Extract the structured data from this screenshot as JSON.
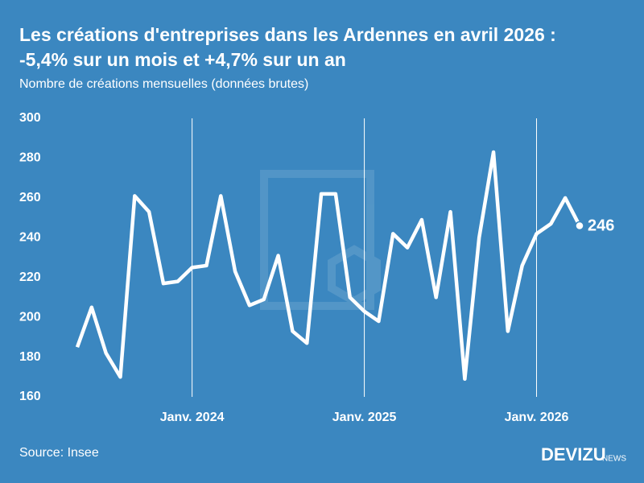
{
  "chart_data": {
    "type": "line",
    "title": "Les créations d'entreprises dans les Ardennes en avril 2026 :",
    "title_line2": "-5,4% sur un mois et +4,7% sur un an",
    "subtitle": "Nombre de créations mensuelles (données brutes)",
    "source": "Source: Insee",
    "brand": "DEVIZU",
    "brand_suffix": "NEWS",
    "categories": [
      null,
      null,
      null,
      null,
      null,
      null,
      null,
      null,
      "Janv. 2024",
      null,
      null,
      null,
      null,
      null,
      null,
      null,
      null,
      null,
      null,
      null,
      "Janv. 2025",
      null,
      null,
      null,
      null,
      null,
      null,
      null,
      null,
      null,
      null,
      null,
      "Janv. 2026",
      null,
      null,
      null
    ],
    "series": [
      {
        "name": "Créations",
        "color": "#ffffff",
        "values": [
          185,
          205,
          182,
          170,
          261,
          253,
          217,
          218,
          225,
          226,
          261,
          223,
          206,
          209,
          231,
          193,
          187,
          262,
          262,
          210,
          203,
          198,
          242,
          235,
          249,
          210,
          253,
          169,
          240,
          283,
          193,
          226,
          242,
          247,
          260,
          246
        ]
      }
    ],
    "ylim": [
      160,
      300
    ],
    "yticks": [
      160,
      180,
      200,
      220,
      240,
      260,
      280,
      300
    ],
    "grid": "x-categories"
  }
}
